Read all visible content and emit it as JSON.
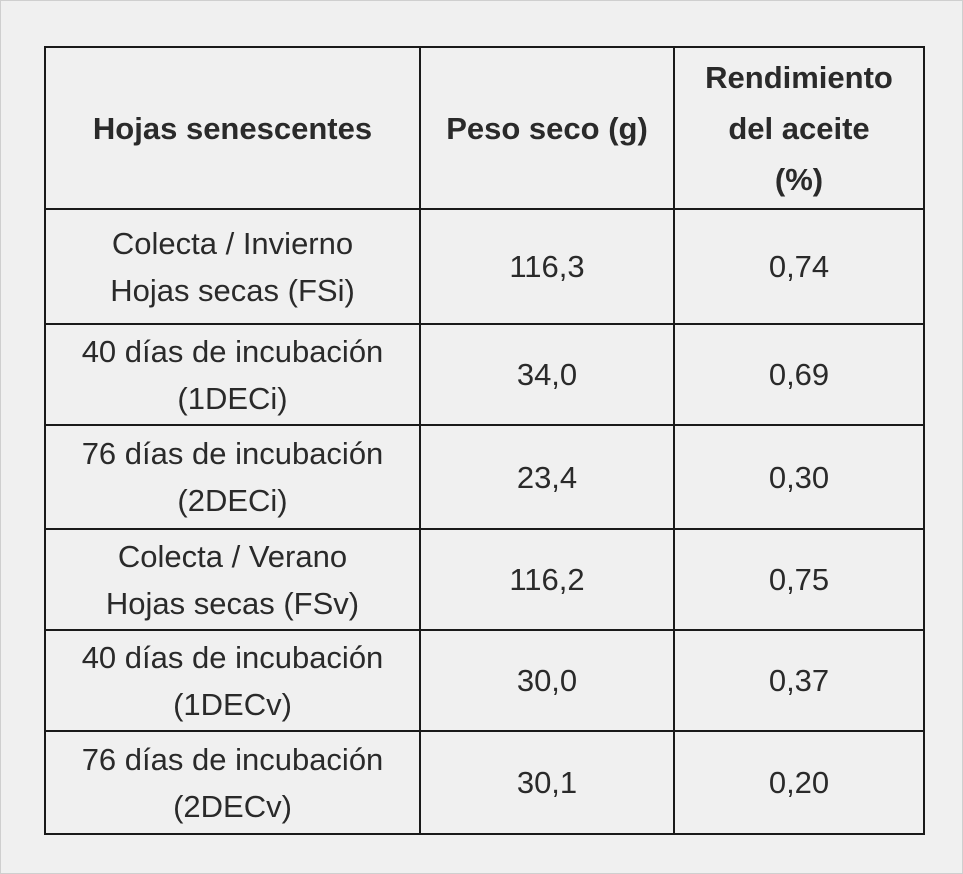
{
  "table": {
    "headers": [
      "Hojas senescentes",
      "Peso seco (g)",
      "Rendimiento\ndel aceite\n(%)"
    ],
    "rows": [
      [
        "Colecta / Invierno\nHojas secas (FSi)",
        "116,3",
        "0,74"
      ],
      [
        "40 días de incubación\n(1DECi)",
        "34,0",
        "0,69"
      ],
      [
        "76 días de incubación\n(2DECi)",
        "23,4",
        "0,30"
      ],
      [
        "Colecta / Verano\nHojas secas (FSv)",
        "116,2",
        "0,75"
      ],
      [
        "40 días de incubación\n(1DECv)",
        "30,0",
        "0,37"
      ],
      [
        "76 días de incubación\n(2DECv)",
        "30,1",
        "0,20"
      ]
    ]
  }
}
